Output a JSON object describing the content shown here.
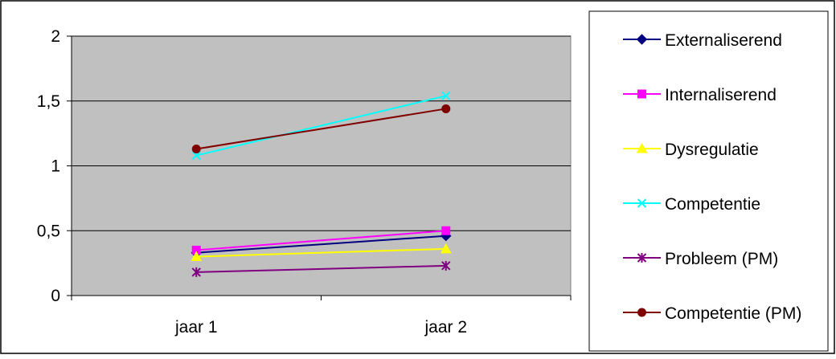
{
  "chart_data": {
    "type": "line",
    "title": "",
    "xlabel": "",
    "ylabel": "",
    "categories": [
      "jaar 1",
      "jaar 2"
    ],
    "ylim": [
      0,
      2
    ],
    "yticks": [
      0,
      0.5,
      1,
      1.5,
      2
    ],
    "ytick_labels": [
      "0",
      "0,5",
      "1",
      "1,5",
      "2"
    ],
    "grid": true,
    "plot_background": "#C0C0C0",
    "legend_position": "right",
    "series": [
      {
        "name": "Externaliserend",
        "values": [
          0.33,
          0.46
        ],
        "color": "#000080",
        "marker": "diamond"
      },
      {
        "name": "Internaliserend",
        "values": [
          0.35,
          0.5
        ],
        "color": "#FF00FF",
        "marker": "square"
      },
      {
        "name": "Dysregulatie",
        "values": [
          0.3,
          0.36
        ],
        "color": "#FFFF00",
        "marker": "triangle"
      },
      {
        "name": "Competentie",
        "values": [
          1.08,
          1.54
        ],
        "color": "#00FFFF",
        "marker": "x"
      },
      {
        "name": "Probleem (PM)",
        "values": [
          0.18,
          0.23
        ],
        "color": "#800080",
        "marker": "star"
      },
      {
        "name": "Competentie (PM)",
        "values": [
          1.13,
          1.44
        ],
        "color": "#800000",
        "marker": "circle"
      }
    ]
  }
}
